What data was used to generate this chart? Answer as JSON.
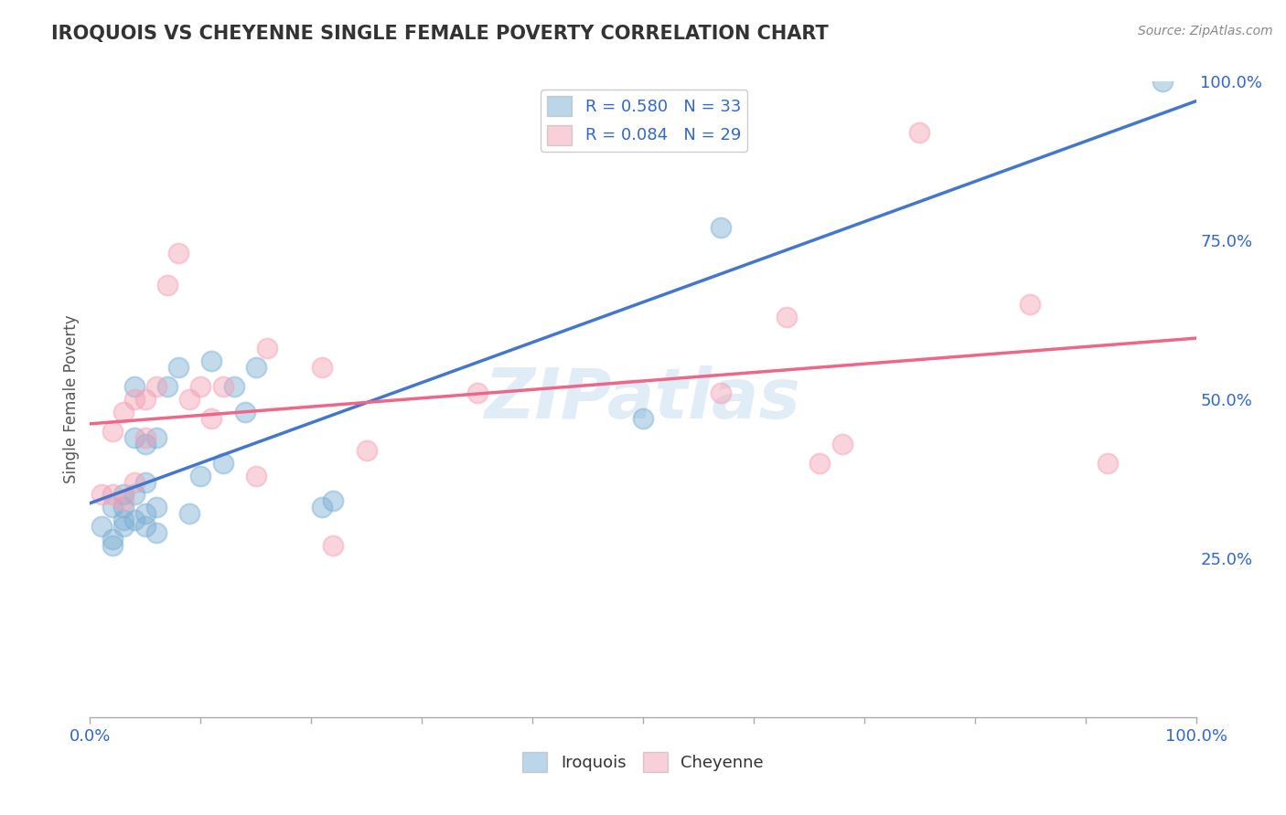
{
  "title": "IROQUOIS VS CHEYENNE SINGLE FEMALE POVERTY CORRELATION CHART",
  "source": "Source: ZipAtlas.com",
  "ylabel": "Single Female Poverty",
  "xlim": [
    0,
    1.0
  ],
  "ylim": [
    0,
    1.0
  ],
  "xticks": [
    0.0,
    0.1,
    0.2,
    0.3,
    0.4,
    0.5,
    0.6,
    0.7,
    0.8,
    0.9,
    1.0
  ],
  "xticklabels_show": {
    "0.0": "0.0%",
    "0.5": "",
    "1.0": "100.0%"
  },
  "ytick_labels_right": [
    "100.0%",
    "75.0%",
    "50.0%",
    "25.0%"
  ],
  "ytick_vals_right": [
    1.0,
    0.75,
    0.5,
    0.25
  ],
  "iroquois_color": "#7bafd4",
  "cheyenne_color": "#f4a0b5",
  "iroquois_R": 0.58,
  "iroquois_N": 33,
  "cheyenne_R": 0.084,
  "cheyenne_N": 29,
  "iroquois_line_color": "#4477cc",
  "cheyenne_line_color": "#ee6688",
  "watermark": "ZIPatlas",
  "background_color": "#ffffff",
  "grid_color": "#bbbbbb",
  "title_color": "#333333",
  "axis_label_color": "#555555",
  "tick_color": "#3366cc",
  "iroquois_x": [
    0.01,
    0.02,
    0.02,
    0.02,
    0.03,
    0.03,
    0.03,
    0.03,
    0.04,
    0.04,
    0.04,
    0.04,
    0.05,
    0.05,
    0.05,
    0.05,
    0.06,
    0.06,
    0.06,
    0.07,
    0.08,
    0.09,
    0.1,
    0.11,
    0.12,
    0.13,
    0.14,
    0.15,
    0.21,
    0.22,
    0.5,
    0.57,
    0.97
  ],
  "iroquois_y": [
    0.3,
    0.28,
    0.27,
    0.33,
    0.3,
    0.31,
    0.33,
    0.35,
    0.31,
    0.35,
    0.44,
    0.52,
    0.3,
    0.32,
    0.37,
    0.43,
    0.29,
    0.33,
    0.44,
    0.52,
    0.55,
    0.32,
    0.38,
    0.56,
    0.4,
    0.52,
    0.48,
    0.55,
    0.33,
    0.34,
    0.47,
    0.77,
    1.0
  ],
  "cheyenne_x": [
    0.01,
    0.02,
    0.02,
    0.03,
    0.03,
    0.04,
    0.04,
    0.05,
    0.05,
    0.06,
    0.07,
    0.08,
    0.09,
    0.1,
    0.11,
    0.12,
    0.15,
    0.16,
    0.21,
    0.22,
    0.25,
    0.35,
    0.57,
    0.63,
    0.66,
    0.68,
    0.75,
    0.85,
    0.92
  ],
  "cheyenne_y": [
    0.35,
    0.35,
    0.45,
    0.34,
    0.48,
    0.37,
    0.5,
    0.44,
    0.5,
    0.52,
    0.68,
    0.73,
    0.5,
    0.52,
    0.47,
    0.52,
    0.38,
    0.58,
    0.55,
    0.27,
    0.42,
    0.51,
    0.51,
    0.63,
    0.4,
    0.43,
    0.92,
    0.65,
    0.4
  ]
}
